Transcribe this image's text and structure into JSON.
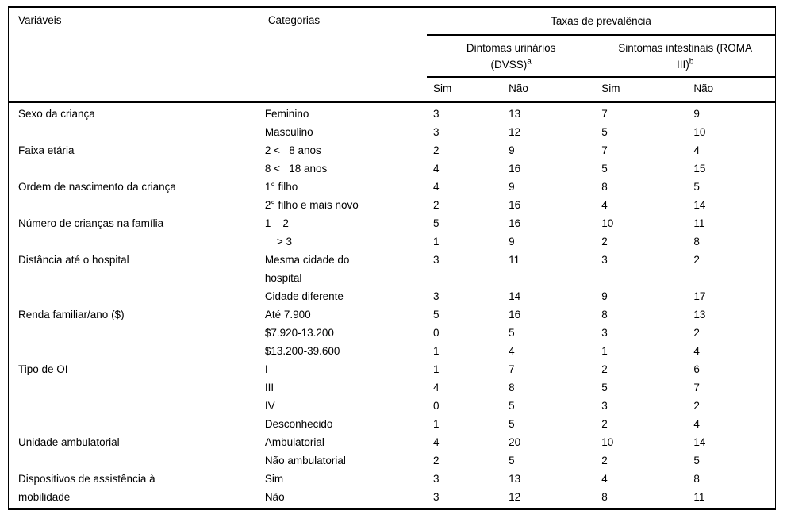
{
  "table": {
    "header": {
      "col_variables": "Variáveis",
      "col_categories": "Categorias",
      "group_title": "Taxas de prevalência",
      "subgroups": [
        {
          "label": "Dintomas urinários\n(DVSS)",
          "sup": "a"
        },
        {
          "label": "Sintomas intestinais (ROMA\nIII)",
          "sup": "b"
        }
      ],
      "yes_no": [
        "Sim",
        "Não",
        "Sim",
        "Não"
      ]
    },
    "rows": [
      {
        "variable": "Sexo da criança",
        "category": "Feminino",
        "values": [
          3,
          13,
          7,
          9
        ]
      },
      {
        "variable": "",
        "category": "Masculino",
        "values": [
          3,
          12,
          5,
          10
        ]
      },
      {
        "variable": "Faixa etária",
        "category": "2 <   8 anos",
        "values": [
          2,
          9,
          7,
          4
        ]
      },
      {
        "variable": "",
        "category": "8 <   18 anos",
        "values": [
          4,
          16,
          5,
          15
        ]
      },
      {
        "variable": "Ordem de nascimento da criança",
        "category": "1° filho",
        "values": [
          4,
          9,
          8,
          5
        ]
      },
      {
        "variable": "",
        "category": "2° filho e mais novo",
        "values": [
          2,
          16,
          4,
          14
        ]
      },
      {
        "variable": "Número de crianças na família",
        "category": "1 – 2",
        "values": [
          5,
          16,
          10,
          11
        ]
      },
      {
        "variable": "",
        "category": "    > 3",
        "values": [
          1,
          9,
          2,
          8
        ]
      },
      {
        "variable": "Distância até o hospital",
        "category": "Mesma cidade do\nhospital",
        "values": [
          3,
          11,
          3,
          2
        ]
      },
      {
        "variable": "",
        "category": "Cidade diferente",
        "values": [
          3,
          14,
          9,
          17
        ]
      },
      {
        "variable": "Renda familiar/ano ($)",
        "category": "Até 7.900",
        "values": [
          5,
          16,
          8,
          13
        ]
      },
      {
        "variable": "",
        "category": "$7.920-13.200",
        "values": [
          0,
          5,
          3,
          2
        ]
      },
      {
        "variable": "",
        "category": "$13.200-39.600",
        "values": [
          1,
          4,
          1,
          4
        ]
      },
      {
        "variable": "Tipo de OI",
        "category": "I",
        "values": [
          1,
          7,
          2,
          6
        ]
      },
      {
        "variable": "",
        "category": "III",
        "values": [
          4,
          8,
          5,
          7
        ]
      },
      {
        "variable": "",
        "category": "IV",
        "values": [
          0,
          5,
          3,
          2
        ]
      },
      {
        "variable": "",
        "category": "Desconhecido",
        "values": [
          1,
          5,
          2,
          4
        ]
      },
      {
        "variable": "Unidade ambulatorial",
        "category": "Ambulatorial",
        "values": [
          4,
          20,
          10,
          14
        ]
      },
      {
        "variable": "",
        "category": "Não ambulatorial",
        "values": [
          2,
          5,
          2,
          5
        ]
      },
      {
        "variable": "Dispositivos de assistência à\nmobilidade",
        "variable_rowspan": 2,
        "category": "Sim",
        "values": [
          3,
          13,
          4,
          8
        ]
      },
      {
        "variable": null,
        "category": "Não",
        "values": [
          3,
          12,
          8,
          11
        ]
      }
    ]
  }
}
